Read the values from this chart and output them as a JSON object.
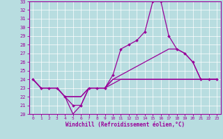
{
  "xlabel": "Windchill (Refroidissement éolien,°C)",
  "xlim": [
    -0.5,
    23.5
  ],
  "ylim": [
    20,
    33
  ],
  "yticks": [
    20,
    21,
    22,
    23,
    24,
    25,
    26,
    27,
    28,
    29,
    30,
    31,
    32,
    33
  ],
  "xticks": [
    0,
    1,
    2,
    3,
    4,
    5,
    6,
    7,
    8,
    9,
    10,
    11,
    12,
    13,
    14,
    15,
    16,
    17,
    18,
    19,
    20,
    21,
    22,
    23
  ],
  "bg_color": "#b8dde0",
  "line_color": "#990099",
  "grid_color": "#ffffff",
  "series": [
    {
      "x": [
        0,
        1,
        2,
        3,
        4,
        5,
        6,
        7,
        8,
        9,
        10,
        11,
        12,
        13,
        14,
        15,
        16,
        17,
        18,
        19,
        20,
        21,
        22,
        23
      ],
      "y": [
        24,
        23,
        23,
        23,
        22,
        20,
        21,
        23,
        23,
        23,
        23.5,
        24,
        24,
        24,
        24,
        24,
        24,
        24,
        24,
        24,
        24,
        24,
        24,
        24
      ],
      "marker": false
    },
    {
      "x": [
        0,
        1,
        2,
        3,
        4,
        5,
        6,
        7,
        8,
        9,
        10,
        11,
        12,
        13,
        14,
        15,
        16,
        17,
        18,
        19,
        20,
        21,
        22,
        23
      ],
      "y": [
        24,
        23,
        23,
        23,
        22,
        22,
        22,
        23,
        23,
        23,
        24,
        24,
        24,
        24,
        24,
        24,
        24,
        24,
        24,
        24,
        24,
        24,
        24,
        24
      ],
      "marker": false
    },
    {
      "x": [
        0,
        1,
        2,
        3,
        4,
        5,
        6,
        7,
        8,
        9,
        10,
        11,
        12,
        13,
        14,
        15,
        16,
        17,
        18,
        19,
        20,
        21,
        22,
        23
      ],
      "y": [
        24,
        23,
        23,
        23,
        22,
        22,
        22,
        23,
        23,
        23,
        24,
        24.5,
        25,
        25.5,
        26,
        26.5,
        27,
        27.5,
        27.5,
        27,
        26,
        24,
        24,
        24
      ],
      "marker": false
    },
    {
      "x": [
        0,
        1,
        2,
        3,
        4,
        5,
        6,
        7,
        8,
        9,
        10,
        11,
        12,
        13,
        14,
        15,
        16,
        17,
        18,
        19,
        20,
        21,
        22,
        23
      ],
      "y": [
        24,
        23,
        23,
        23,
        22,
        21,
        21,
        23,
        23,
        23,
        24.5,
        27.5,
        28,
        28.5,
        29.5,
        33,
        33,
        29,
        27.5,
        27,
        26,
        24,
        24,
        24
      ],
      "marker": true
    }
  ]
}
